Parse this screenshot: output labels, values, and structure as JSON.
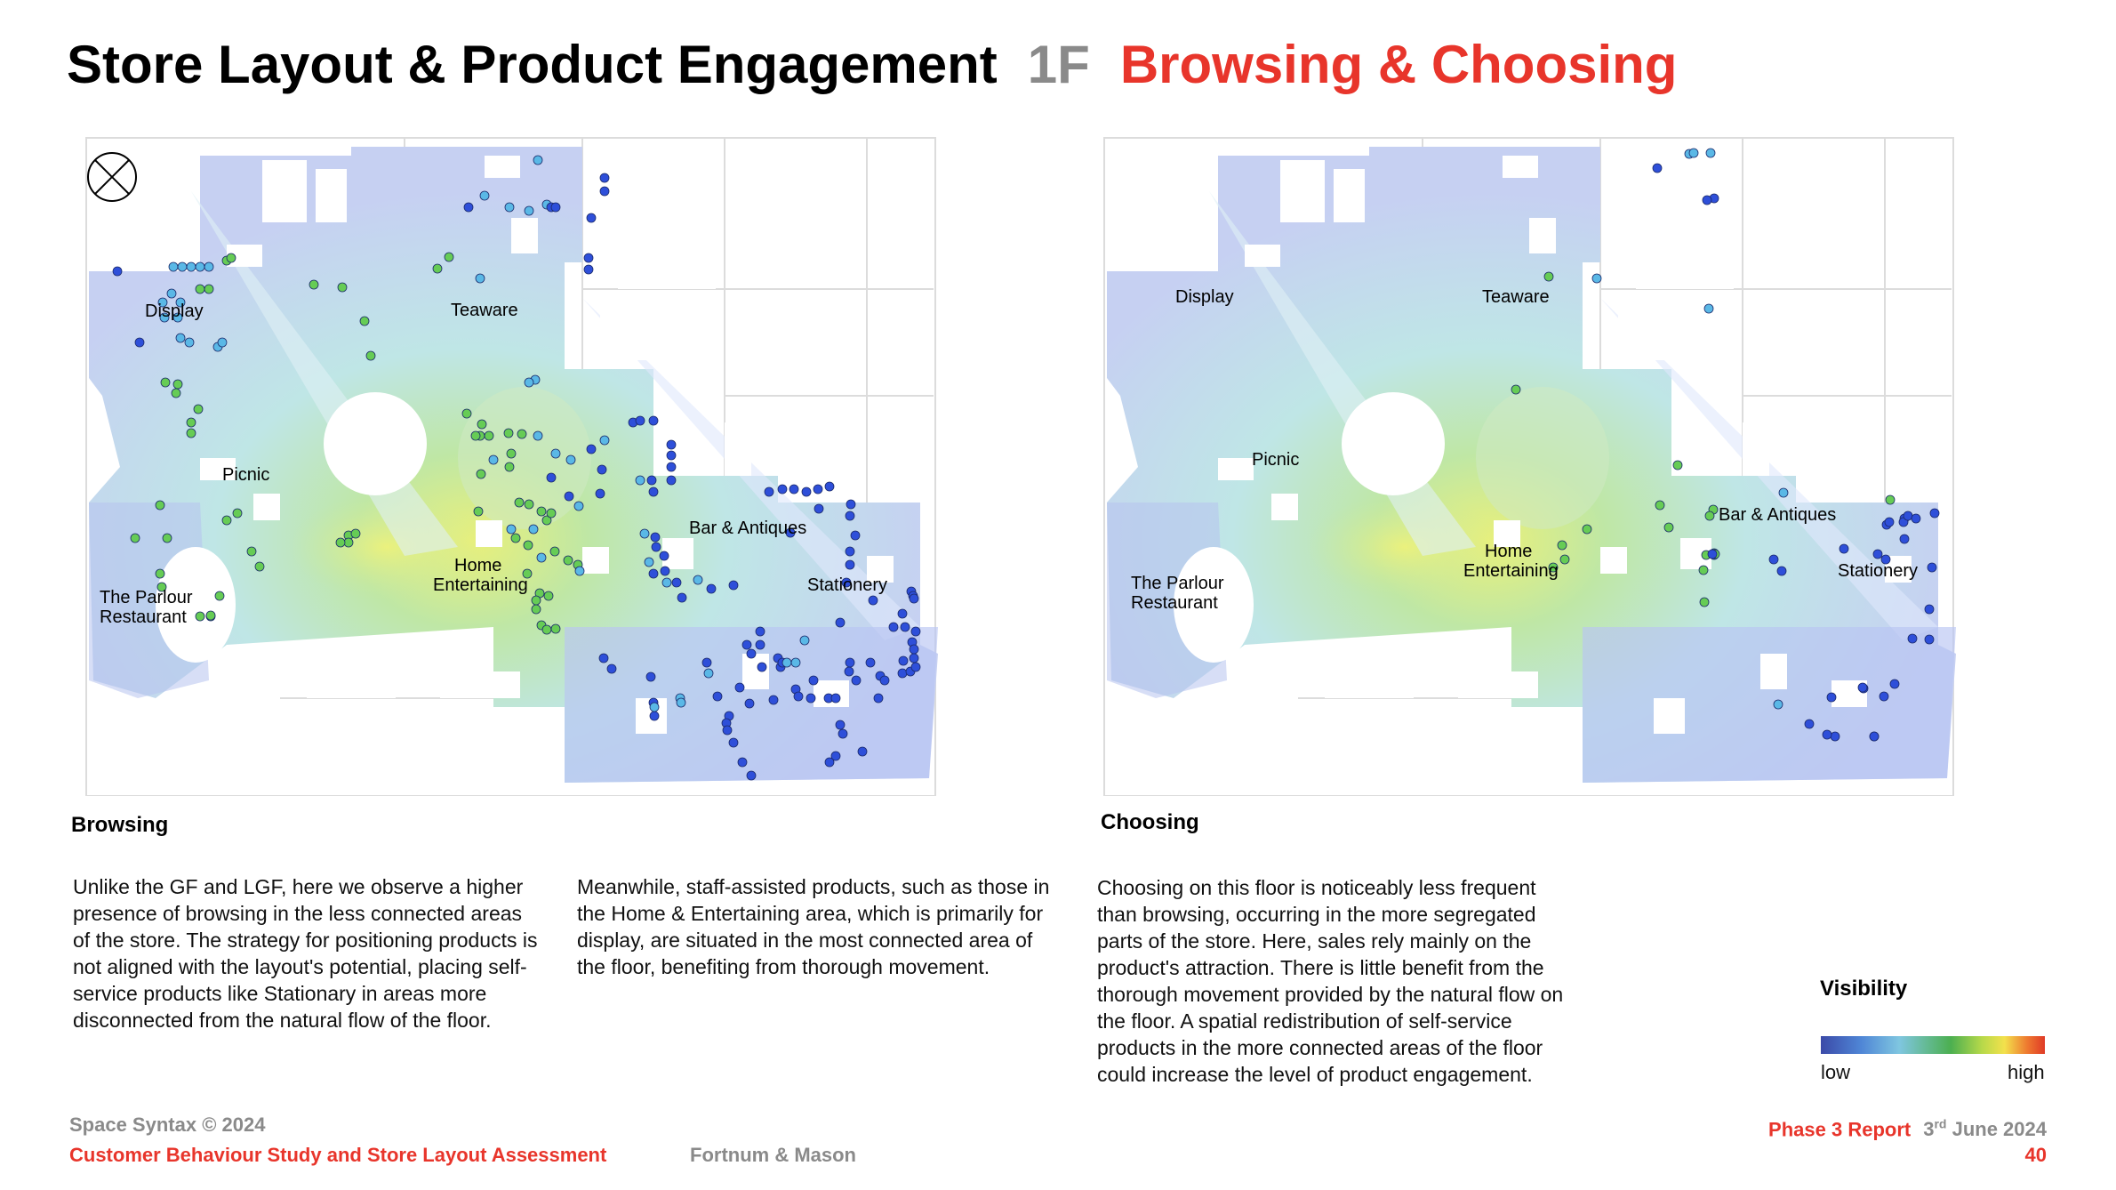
{
  "header": {
    "title": "Store Layout & Product Engagement",
    "floor": "1F",
    "topic": "Browsing & Choosing"
  },
  "maps": {
    "left": {
      "labels": {
        "display": "Display",
        "teaware": "Teaware",
        "picnic": "Picnic",
        "parlour_1": "The Parlour",
        "parlour_2": "Restaurant",
        "home_1": "Home",
        "home_2": "Entertaining",
        "bar": "Bar & Antiques",
        "stationery": "Stationery"
      }
    },
    "right": {
      "labels": {
        "display": "Display",
        "teaware": "Teaware",
        "picnic": "Picnic",
        "parlour_1": "The Parlour",
        "parlour_2": "Restaurant",
        "home_1": "Home",
        "home_2": "Entertaining",
        "bar": "Bar & Antiques",
        "stationery": "Stationery"
      }
    }
  },
  "browsing": {
    "title": "Browsing",
    "para1": "Unlike the GF and LGF, here we observe a higher presence of browsing in the less connected areas of the store. The strategy for positioning products is not aligned with the layout's potential, placing self-service products like Stationary in areas more disconnected from the natural flow of the floor.",
    "para2": "Meanwhile, staff-assisted products, such as those in the Home & Entertaining area, which is primarily for display, are situated in the most connected area of the floor, benefiting from thorough movement."
  },
  "choosing": {
    "title": "Choosing",
    "para": "Choosing on this floor is noticeably less frequent than browsing, occurring in the more segregated parts of the store. Here, sales rely mainly on the product's attraction. There is little benefit from the thorough movement provided by the natural flow on the floor. A spatial redistribution of self-service products in the more connected areas of the floor could increase the level of product engagement."
  },
  "legend": {
    "title": "Visibility",
    "low": "low",
    "high": "high"
  },
  "footer": {
    "copyright": "Space Syntax © 2024",
    "study": "Customer Behaviour Study and Store Layout Assessment",
    "client": "Fortnum & Mason",
    "report": "Phase 3 Report",
    "day": "3",
    "day_suffix": "rd",
    "month_year": "June 2024",
    "page": "40"
  },
  "colors": {
    "accent_red": "#e8352b",
    "grey": "#8a8a8a"
  }
}
